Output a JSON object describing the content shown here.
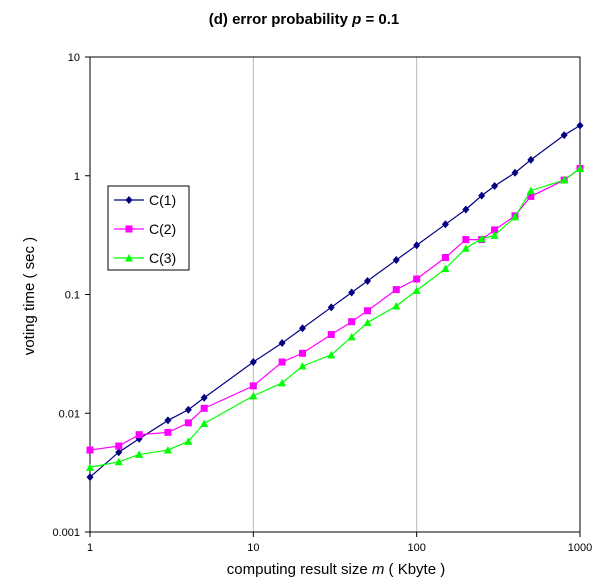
{
  "chart_data": {
    "type": "line",
    "title_prefix": "(d) error probability ",
    "title_var": "p",
    "title_suffix": " = 0.1",
    "xlabel_prefix": "computing result size ",
    "xlabel_var": "m",
    "xlabel_suffix": " ( Kbyte )",
    "ylabel": "voting time ( sec )",
    "x_scale": "log",
    "y_scale": "log",
    "xlim": [
      1,
      1000
    ],
    "ylim": [
      0.001,
      10
    ],
    "x_ticks": [
      "1",
      "10",
      "100",
      "1000"
    ],
    "y_ticks": [
      "0.001",
      "0.01",
      "0.1",
      "1",
      "10"
    ],
    "grid": "vertical",
    "legend_position": "left",
    "x": [
      1,
      1.5,
      2,
      3,
      4,
      5,
      10,
      15,
      20,
      30,
      40,
      50,
      75,
      100,
      150,
      200,
      250,
      300,
      400,
      500,
      800,
      1000
    ],
    "series": [
      {
        "name": "C(1)",
        "color": "#000080",
        "marker": "diamond",
        "values": [
          0.0029,
          0.0047,
          0.0061,
          0.0087,
          0.0107,
          0.0135,
          0.027,
          0.039,
          0.052,
          0.078,
          0.104,
          0.13,
          0.195,
          0.26,
          0.39,
          0.52,
          0.68,
          0.82,
          1.06,
          1.36,
          2.2,
          2.65
        ]
      },
      {
        "name": "C(2)",
        "color": "#ff00ff",
        "marker": "square",
        "values": [
          0.0049,
          0.0053,
          0.0066,
          0.0069,
          0.0083,
          0.011,
          0.017,
          0.027,
          0.032,
          0.046,
          0.059,
          0.073,
          0.11,
          0.135,
          0.205,
          0.29,
          0.29,
          0.35,
          0.46,
          0.67,
          0.92,
          1.15
        ]
      },
      {
        "name": "C(3)",
        "color": "#00ff00",
        "marker": "triangle",
        "values": [
          0.0035,
          0.0039,
          0.0045,
          0.0049,
          0.0058,
          0.0082,
          0.014,
          0.018,
          0.025,
          0.031,
          0.044,
          0.058,
          0.08,
          0.108,
          0.165,
          0.245,
          0.295,
          0.315,
          0.45,
          0.75,
          0.92,
          1.15
        ]
      }
    ]
  }
}
